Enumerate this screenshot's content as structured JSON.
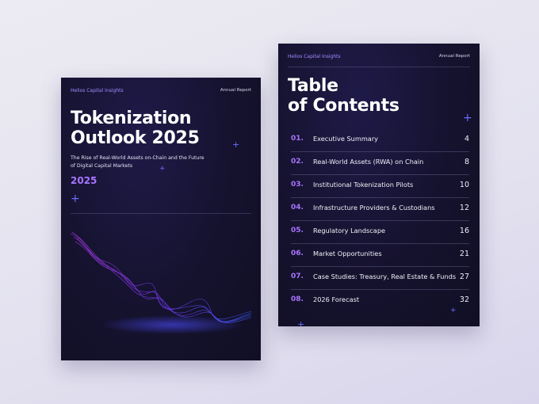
{
  "cover": {
    "brand": "Helios Capital Insights",
    "label": "Annual Report",
    "title_lines": [
      "Tokenization",
      "Outlook 2025"
    ],
    "subtitle": "The Rise of Real-World Assets on-Chain and the Future of Digital Capital Markets",
    "year": "2025"
  },
  "toc": {
    "brand": "Helios Capital Insights",
    "label": "Annual Report",
    "title_lines": [
      "Table",
      "of Contents"
    ],
    "items": [
      {
        "number": "01.",
        "title": "Executive Summary",
        "page": 4
      },
      {
        "number": "02.",
        "title": "Real-World Assets (RWA) on Chain",
        "page": 8
      },
      {
        "number": "03.",
        "title": "Institutional Tokenization Pilots",
        "page": 10
      },
      {
        "number": "04.",
        "title": "Infrastructure Providers & Custodians",
        "page": 12
      },
      {
        "number": "05.",
        "title": "Regulatory Landscape",
        "page": 16
      },
      {
        "number": "06.",
        "title": "Market Opportunities",
        "page": 21
      },
      {
        "number": "07.",
        "title": "Case Studies: Treasury, Real Estate & Funds",
        "page": 27
      },
      {
        "number": "08.",
        "title": "2026 Forecast",
        "page": 32
      }
    ]
  }
}
